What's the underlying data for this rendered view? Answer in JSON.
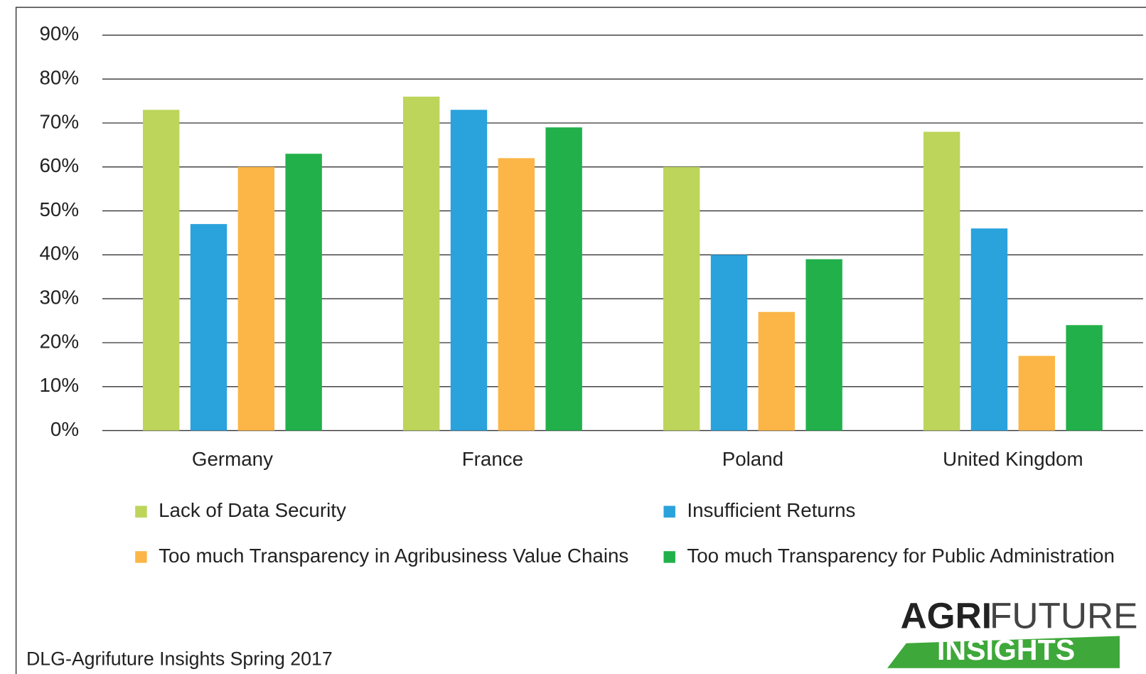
{
  "chart_data": {
    "type": "bar",
    "categories": [
      "Germany",
      "France",
      "Poland",
      "United Kingdom"
    ],
    "series": [
      {
        "name": "Lack of Data Security",
        "color": "#bcd55a",
        "values": [
          73,
          76,
          60,
          68
        ]
      },
      {
        "name": "Insufficient Returns",
        "color": "#2aa2dc",
        "values": [
          47,
          73,
          40,
          46
        ]
      },
      {
        "name": "Too much Transparency in Agribusiness Value Chains",
        "color": "#fbb647",
        "values": [
          60,
          62,
          27,
          17
        ]
      },
      {
        "name": "Too much Transparency for Public Administration",
        "color": "#22b04b",
        "values": [
          63,
          69,
          39,
          24
        ]
      }
    ],
    "ylim": [
      0,
      90
    ],
    "yticks": [
      {
        "value": 0,
        "label": "0%"
      },
      {
        "value": 10,
        "label": "10%"
      },
      {
        "value": 20,
        "label": "20%"
      },
      {
        "value": 30,
        "label": "30%"
      },
      {
        "value": 40,
        "label": "40%"
      },
      {
        "value": 50,
        "label": "50%"
      },
      {
        "value": 60,
        "label": "60%"
      },
      {
        "value": 70,
        "label": "70%"
      },
      {
        "value": 80,
        "label": "80%"
      },
      {
        "value": 90,
        "label": "90%"
      }
    ],
    "grid": true,
    "source": "DLG-Agrifuture Insights Spring 2017",
    "logo": {
      "agri": "AGRI",
      "future": "FUTURE",
      "insights": "INSIGHTS"
    }
  }
}
